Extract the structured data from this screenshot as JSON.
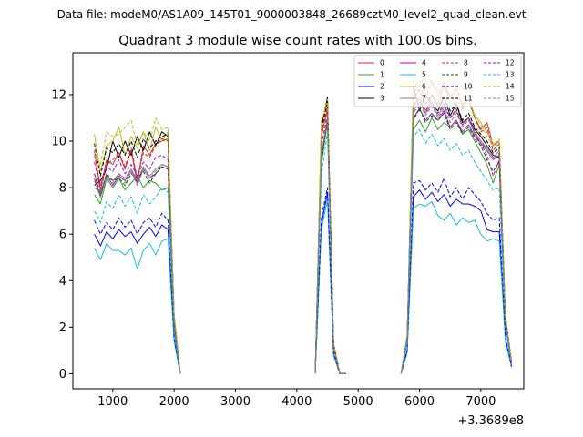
{
  "chart_data": {
    "type": "line",
    "suptitle": "Data file: modeM0/AS1A09_145T01_9000003848_26689cztM0_level2_quad_clean.evt",
    "title": "Quadrant 3 module wise count rates with 100.0s bins.",
    "xlabel": "",
    "ylabel": "",
    "x_offset_label": "+3.3689e8",
    "xlim": [
      350,
      7700
    ],
    "ylim": [
      -0.65,
      13.8
    ],
    "xticks": [
      1000,
      2000,
      3000,
      4000,
      5000,
      6000,
      7000
    ],
    "yticks": [
      0,
      2,
      4,
      6,
      8,
      10,
      12
    ],
    "legend_position": "top-right",
    "segments": [
      {
        "start": 700,
        "n": 15
      },
      {
        "start": 4300,
        "n": 6
      },
      {
        "start": 5700,
        "n": 19
      }
    ],
    "series": [
      {
        "name": "0",
        "color": "#d62728",
        "dash": "solid",
        "segs": [
          [
            9.6,
            7.9,
            9.2,
            9.0,
            9.5,
            8.8,
            9.6,
            8.2,
            9.8,
            9.4,
            9.9,
            10.0,
            10.1,
            2.4,
            0
          ],
          [
            0,
            10.2,
            11.4,
            1.2,
            0,
            0
          ],
          [
            0,
            1.5,
            11.6,
            11.8,
            11.2,
            12.0,
            11.6,
            12.4,
            11.8,
            12.3,
            11.5,
            11.8,
            11.0,
            10.5,
            10.8,
            9.8,
            10.0,
            2.5,
            0.5
          ]
        ]
      },
      {
        "name": "1",
        "color": "#2ca02c",
        "dash": "solid",
        "segs": [
          [
            7.7,
            7.3,
            8.4,
            8.0,
            8.4,
            7.9,
            8.2,
            8.5,
            8.0,
            8.3,
            8.2,
            7.9,
            8.0,
            2.0,
            0
          ],
          [
            0,
            9.0,
            10.8,
            1.1,
            0,
            0
          ],
          [
            0,
            1.4,
            10.5,
            10.9,
            10.4,
            11.0,
            10.5,
            10.8,
            10.6,
            10.9,
            10.3,
            10.5,
            10.0,
            9.5,
            9.0,
            8.2,
            9.0,
            2.2,
            0.4
          ]
        ]
      },
      {
        "name": "2",
        "color": "#0000ff",
        "dash": "solid",
        "segs": [
          [
            6.0,
            5.5,
            6.1,
            5.8,
            6.2,
            5.9,
            6.1,
            5.6,
            6.0,
            6.3,
            5.9,
            6.4,
            6.2,
            1.5,
            0
          ],
          [
            0,
            6.4,
            7.8,
            0.8,
            0,
            0
          ],
          [
            0,
            1.0,
            7.6,
            7.9,
            7.5,
            7.8,
            7.4,
            7.7,
            7.2,
            7.5,
            7.3,
            7.3,
            7.2,
            7.0,
            6.2,
            6.1,
            6.1,
            1.5,
            0.3
          ]
        ]
      },
      {
        "name": "3",
        "color": "#000000",
        "dash": "solid",
        "segs": [
          [
            8.1,
            8.3,
            8.8,
            10.0,
            9.3,
            10.0,
            9.4,
            10.2,
            9.6,
            10.4,
            9.8,
            10.4,
            10.2,
            2.5,
            0
          ],
          [
            0,
            10.6,
            11.9,
            1.3,
            0,
            0
          ],
          [
            0,
            1.6,
            12.4,
            11.3,
            12.0,
            11.6,
            11.3,
            11.9,
            11.1,
            11.6,
            10.8,
            11.0,
            10.5,
            10.2,
            9.8,
            9.4,
            9.3,
            2.4,
            0.5
          ]
        ]
      },
      {
        "name": "4",
        "color": "#bf00bf",
        "dash": "solid",
        "segs": [
          [
            8.4,
            7.6,
            8.6,
            8.1,
            8.5,
            8.3,
            8.7,
            8.2,
            8.8,
            8.4,
            8.6,
            8.9,
            8.8,
            2.1,
            0
          ],
          [
            0,
            9.3,
            11.0,
            1.1,
            0,
            0
          ],
          [
            0,
            1.5,
            11.0,
            11.4,
            10.9,
            11.2,
            10.9,
            11.3,
            10.6,
            10.9,
            10.4,
            10.7,
            10.2,
            9.9,
            9.6,
            9.2,
            9.4,
            2.3,
            0.4
          ]
        ]
      },
      {
        "name": "5",
        "color": "#17becf",
        "dash": "solid",
        "segs": [
          [
            5.4,
            4.9,
            5.6,
            5.3,
            5.3,
            5.1,
            5.4,
            4.5,
            5.3,
            5.6,
            5.1,
            5.7,
            5.8,
            1.4,
            0
          ],
          [
            0,
            6.2,
            7.5,
            0.8,
            0,
            0
          ],
          [
            0,
            0.9,
            7.1,
            7.3,
            7.2,
            7.4,
            6.8,
            6.6,
            6.9,
            6.4,
            6.7,
            6.5,
            6.6,
            6.0,
            5.7,
            5.8,
            5.7,
            1.4,
            0.3
          ]
        ]
      },
      {
        "name": "6",
        "color": "#bcbd22",
        "dash": "solid",
        "segs": [
          [
            10.3,
            8.7,
            9.8,
            10.0,
            10.6,
            9.4,
            10.2,
            9.7,
            10.4,
            9.6,
            10.6,
            10.0,
            10.4,
            2.6,
            0
          ],
          [
            0,
            10.9,
            11.6,
            1.3,
            0,
            0
          ],
          [
            0,
            1.6,
            12.7,
            12.3,
            12.9,
            12.5,
            11.9,
            12.6,
            11.8,
            12.3,
            11.6,
            11.9,
            11.1,
            10.8,
            10.4,
            9.9,
            10.0,
            2.4,
            0.5
          ]
        ]
      },
      {
        "name": "7",
        "color": "#7f7f7f",
        "dash": "solid",
        "segs": [
          [
            8.0,
            7.8,
            8.5,
            8.3,
            8.6,
            8.4,
            8.8,
            8.3,
            8.9,
            8.5,
            8.8,
            9.0,
            8.9,
            2.1,
            0
          ],
          [
            0,
            9.4,
            11.0,
            1.1,
            0,
            0
          ],
          [
            0,
            1.5,
            11.3,
            11.7,
            11.2,
            11.6,
            11.1,
            11.5,
            11.0,
            11.3,
            10.7,
            11.0,
            10.4,
            10.0,
            9.7,
            9.3,
            9.6,
            2.3,
            0.5
          ]
        ]
      },
      {
        "name": "8",
        "color": "#d62728",
        "dash": "dashed",
        "segs": [
          [
            9.4,
            8.1,
            9.0,
            9.2,
            9.5,
            8.9,
            9.7,
            8.4,
            9.5,
            9.3,
            9.8,
            10.1,
            10.0,
            2.4,
            0
          ],
          [
            0,
            10.3,
            11.5,
            1.2,
            0,
            0
          ],
          [
            0,
            1.5,
            12.0,
            12.4,
            11.8,
            12.6,
            12.1,
            12.5,
            11.9,
            12.2,
            11.6,
            11.8,
            11.0,
            10.4,
            10.6,
            9.6,
            9.9,
            2.5,
            0.5
          ]
        ]
      },
      {
        "name": "9",
        "color": "#006400",
        "dash": "dashed",
        "segs": [
          [
            8.6,
            7.7,
            8.6,
            8.3,
            8.4,
            8.1,
            8.6,
            8.4,
            8.7,
            8.2,
            8.6,
            8.9,
            8.8,
            2.1,
            0
          ],
          [
            0,
            9.2,
            10.9,
            1.1,
            0,
            0
          ],
          [
            0,
            1.4,
            10.9,
            11.4,
            10.8,
            11.1,
            10.9,
            11.2,
            10.5,
            10.8,
            10.3,
            10.6,
            10.1,
            9.8,
            9.2,
            8.7,
            9.1,
            2.2,
            0.4
          ]
        ]
      },
      {
        "name": "10",
        "color": "#0000ff",
        "dash": "dashed",
        "segs": [
          [
            6.6,
            6.0,
            6.5,
            6.2,
            6.7,
            6.3,
            6.6,
            6.0,
            6.5,
            6.7,
            6.3,
            6.9,
            6.6,
            1.6,
            0
          ],
          [
            0,
            6.7,
            8.0,
            0.9,
            0,
            0
          ],
          [
            0,
            1.0,
            8.2,
            8.3,
            7.9,
            8.2,
            7.8,
            8.4,
            7.6,
            8.0,
            7.5,
            8.0,
            7.7,
            7.4,
            6.9,
            6.6,
            6.7,
            1.6,
            0.3
          ]
        ]
      },
      {
        "name": "11",
        "color": "#000000",
        "dash": "dashed",
        "segs": [
          [
            9.9,
            8.5,
            9.7,
            9.5,
            9.9,
            9.4,
            10.0,
            9.3,
            10.1,
            9.7,
            10.0,
            10.2,
            10.3,
            2.5,
            0
          ],
          [
            0,
            10.5,
            11.7,
            1.3,
            0,
            0
          ],
          [
            0,
            1.6,
            11.9,
            12.2,
            11.6,
            12.0,
            11.5,
            11.9,
            11.3,
            11.6,
            10.9,
            11.2,
            10.6,
            10.3,
            10.0,
            9.5,
            9.7,
            2.4,
            0.5
          ]
        ]
      },
      {
        "name": "12",
        "color": "#bf00bf",
        "dash": "dashed",
        "segs": [
          [
            9.1,
            7.9,
            8.9,
            8.7,
            9.2,
            8.6,
            9.0,
            8.5,
            9.1,
            8.8,
            9.3,
            9.4,
            9.2,
            2.2,
            0
          ],
          [
            0,
            9.8,
            11.2,
            1.2,
            0,
            0
          ],
          [
            0,
            1.5,
            11.5,
            11.9,
            11.3,
            11.7,
            11.2,
            11.6,
            11.0,
            11.4,
            10.7,
            11.0,
            10.3,
            9.9,
            9.4,
            8.5,
            9.2,
            2.3,
            0.4
          ]
        ]
      },
      {
        "name": "13",
        "color": "#17becf",
        "dash": "dashed",
        "segs": [
          [
            7.0,
            6.5,
            7.4,
            7.1,
            7.7,
            7.2,
            7.6,
            6.9,
            7.7,
            7.3,
            7.6,
            8.0,
            7.8,
            1.9,
            0
          ],
          [
            0,
            8.5,
            10.4,
            1.0,
            0,
            0
          ],
          [
            0,
            1.3,
            10.2,
            10.5,
            9.9,
            10.3,
            9.8,
            10.1,
            9.6,
            9.9,
            9.4,
            9.6,
            9.1,
            8.7,
            8.3,
            7.9,
            8.0,
            2.0,
            0.4
          ]
        ]
      },
      {
        "name": "14",
        "color": "#bcbd22",
        "dash": "dashed",
        "segs": [
          [
            9.4,
            9.0,
            10.4,
            10.2,
            10.3,
            10.6,
            10.9,
            9.8,
            10.4,
            10.0,
            11.0,
            10.5,
            10.6,
            2.6,
            0
          ],
          [
            0,
            10.8,
            11.8,
            1.3,
            0,
            0
          ],
          [
            0,
            1.6,
            12.3,
            12.6,
            12.1,
            12.5,
            11.9,
            12.3,
            11.6,
            12.0,
            11.4,
            11.7,
            11.0,
            10.7,
            10.2,
            9.8,
            10.1,
            2.5,
            0.5
          ]
        ]
      },
      {
        "name": "15",
        "color": "#7f7f7f",
        "dash": "dashed",
        "segs": [
          [
            8.3,
            7.6,
            8.4,
            8.2,
            8.6,
            8.2,
            8.7,
            8.1,
            8.8,
            8.4,
            8.7,
            9.0,
            8.9,
            2.1,
            0
          ],
          [
            0,
            9.4,
            11.0,
            1.1,
            0,
            0
          ],
          [
            0,
            1.5,
            11.2,
            11.6,
            11.1,
            11.5,
            11.0,
            11.4,
            10.8,
            11.2,
            10.6,
            10.9,
            10.3,
            10.0,
            9.6,
            9.2,
            9.5,
            2.3,
            0.5
          ]
        ]
      }
    ]
  }
}
